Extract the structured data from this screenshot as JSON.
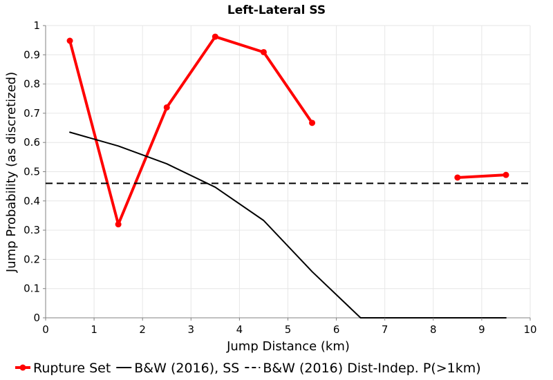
{
  "chart_data": {
    "type": "line",
    "title": "Left-Lateral SS",
    "xlabel": "Jump Distance (km)",
    "ylabel": "Jump Probability (as discretized)",
    "xlim": [
      0,
      10
    ],
    "ylim": [
      0,
      1
    ],
    "x_ticks": [
      0,
      1,
      2,
      3,
      4,
      5,
      6,
      7,
      8,
      9,
      10
    ],
    "y_ticks": [
      0,
      0.1,
      0.2,
      0.3,
      0.4,
      0.5,
      0.6,
      0.7,
      0.8,
      0.9,
      1
    ],
    "x_tick_labels": [
      "0",
      "1",
      "2",
      "3",
      "4",
      "5",
      "6",
      "7",
      "8",
      "9",
      "10"
    ],
    "y_tick_labels": [
      "0",
      "0.1",
      "0.2",
      "0.3",
      "0.4",
      "0.5",
      "0.6",
      "0.7",
      "0.8",
      "0.9",
      "1"
    ],
    "grid": true,
    "legend_position": "bottom",
    "series": [
      {
        "name": "Rupture Set",
        "color": "#ff0000",
        "style": "solid-markers",
        "segments": [
          {
            "x": [
              0.5,
              1.5,
              2.5,
              3.5,
              4.5,
              5.5
            ],
            "y": [
              0.948,
              0.32,
              0.72,
              0.962,
              0.909,
              0.667
            ]
          },
          {
            "x": [
              8.5,
              9.5
            ],
            "y": [
              0.48,
              0.489
            ]
          }
        ]
      },
      {
        "name": "B&W (2016), SS",
        "color": "#000000",
        "style": "solid",
        "segments": [
          {
            "x": [
              0.5,
              1.5,
              2.5,
              3.5,
              4.5,
              5.5,
              6.5,
              7.5,
              8.5,
              9.5
            ],
            "y": [
              0.635,
              0.588,
              0.527,
              0.447,
              0.333,
              0.158,
              0.0,
              0.0,
              0.0,
              0.0
            ]
          }
        ]
      },
      {
        "name": "B&W (2016) Dist-Indep. P(>1km)",
        "color": "#000000",
        "style": "dashed",
        "segments": [
          {
            "x": [
              0,
              10
            ],
            "y": [
              0.46,
              0.46
            ]
          }
        ]
      }
    ]
  }
}
